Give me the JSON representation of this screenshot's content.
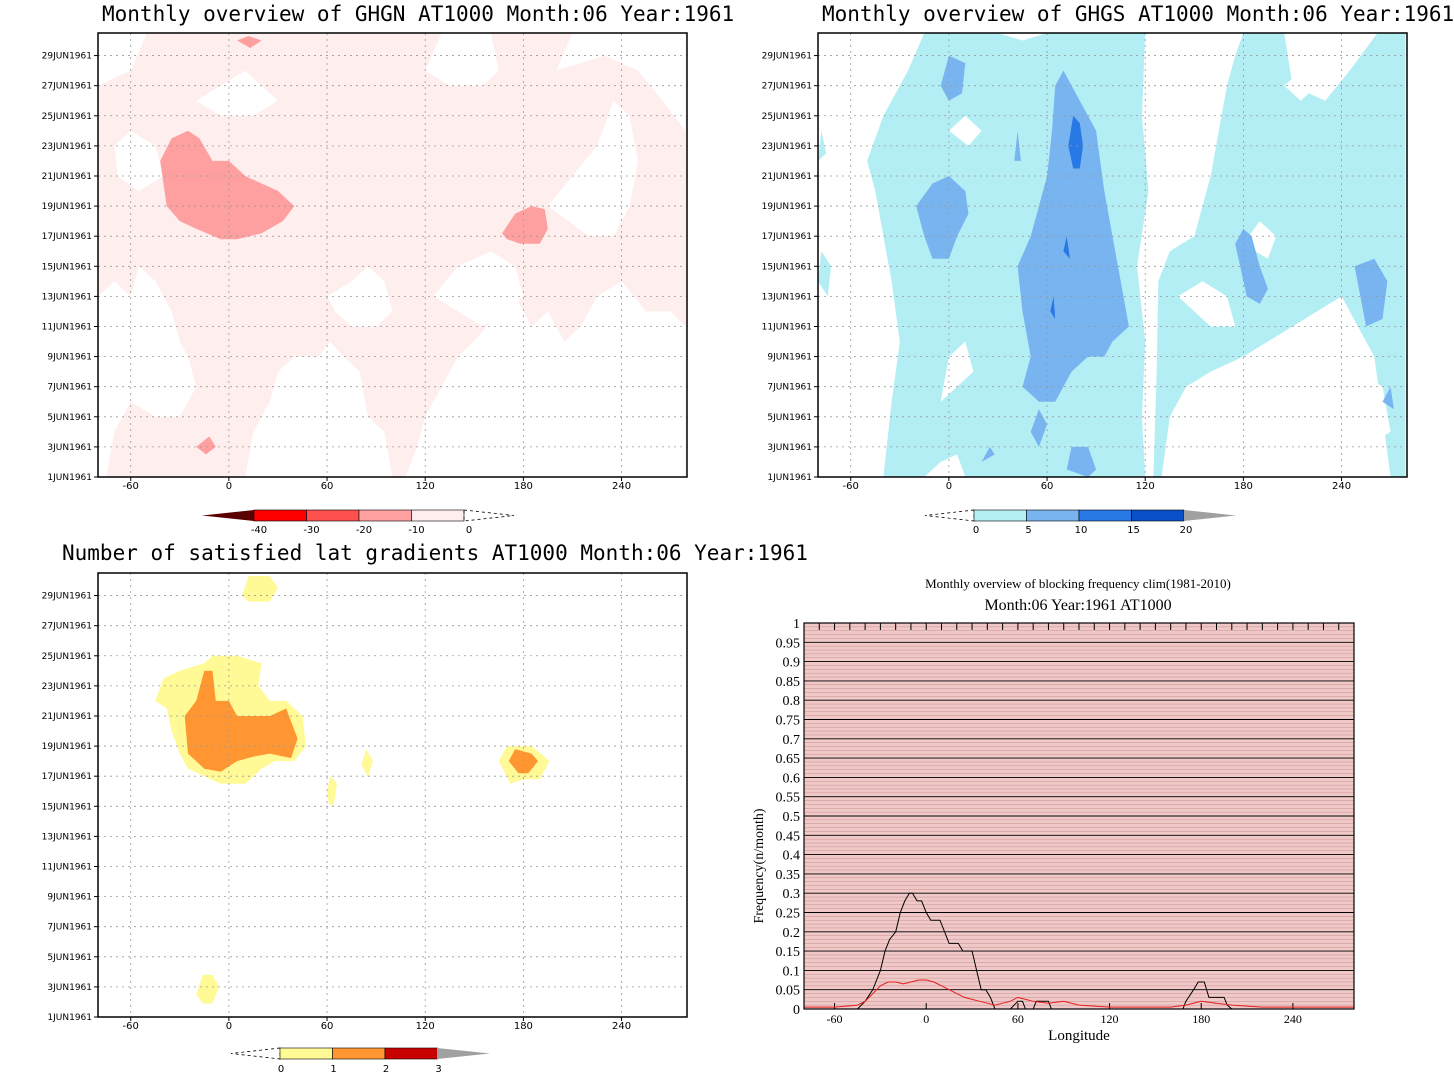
{
  "titles": {
    "ghgn": "Monthly overview of GHGN AT1000 Month:06 Year:1961",
    "ghgs": "Monthly overview of GHGS AT1000 Month:06 Year:1961",
    "grad": "Number of satisfied lat gradients AT1000 Month:06 Year:1961",
    "freq_top": "Monthly overview of blocking frequency clim(1981-2010)",
    "freq_sub": "Month:06 Year:1961  AT1000"
  },
  "colors": {
    "ghgn_fill": "#ffeeee",
    "ghgn_blob": "#ffa0a0",
    "ghgs_light": "#b4eef5",
    "ghgs_mid": "#78b4f0",
    "ghgs_dark": "#2878e6",
    "grad_yellow": "#fffa96",
    "grad_orange": "#ff9632",
    "freq_bg": "#f0c8c8",
    "freq_black": "#000000",
    "freq_red": "#e61e1e"
  },
  "chart_data": [
    {
      "type": "heatmap",
      "title": "Monthly overview of GHGN AT1000 Month:06 Year:1961",
      "x_ticks": [
        "-60",
        "0",
        "60",
        "120",
        "180",
        "240"
      ],
      "y_ticks": [
        "1JUN1961",
        "3JUN1961",
        "5JUN1961",
        "7JUN1961",
        "9JUN1961",
        "11JUN1961",
        "13JUN1961",
        "15JUN1961",
        "17JUN1961",
        "19JUN1961",
        "21JUN1961",
        "23JUN1961",
        "25JUN1961",
        "27JUN1961",
        "29JUN1961"
      ],
      "colorbar_labels": [
        "-40",
        "-30",
        "-20",
        "-10",
        "0"
      ],
      "colorbar_colors": [
        "#5a0000",
        "#ff0000",
        "#ff5050",
        "#ffa0a0",
        "#ffeeee"
      ],
      "regions": [
        {
          "level": "-20 to -10",
          "lon": [
            -45,
            45
          ],
          "date": [
            17,
            24
          ]
        },
        {
          "level": "-20 to -10",
          "lon": [
            167,
            195
          ],
          "date": [
            16.5,
            19
          ]
        }
      ]
    },
    {
      "type": "heatmap",
      "title": "Monthly overview of GHGS AT1000 Month:06 Year:1961",
      "x_ticks": [
        "-60",
        "0",
        "60",
        "120",
        "180",
        "240"
      ],
      "y_ticks": [
        "1JUN1961",
        "3JUN1961",
        "5JUN1961",
        "7JUN1961",
        "9JUN1961",
        "11JUN1961",
        "13JUN1961",
        "15JUN1961",
        "17JUN1961",
        "19JUN1961",
        "21JUN1961",
        "23JUN1961",
        "25JUN1961",
        "27JUN1961",
        "29JUN1961"
      ],
      "colorbar_labels": [
        "0",
        "5",
        "10",
        "15",
        "20"
      ],
      "colorbar_colors": [
        "#b4eef5",
        "#78b4f0",
        "#2878e6",
        "#0a50c8",
        "#a0a0a0"
      ]
    },
    {
      "type": "heatmap",
      "title": "Number of satisfied lat gradients AT1000 Month:06 Year:1961",
      "x_ticks": [
        "-60",
        "0",
        "60",
        "120",
        "180",
        "240"
      ],
      "y_ticks": [
        "1JUN1961",
        "3JUN1961",
        "5JUN1961",
        "7JUN1961",
        "9JUN1961",
        "11JUN1961",
        "13JUN1961",
        "15JUN1961",
        "17JUN1961",
        "19JUN1961",
        "21JUN1961",
        "23JUN1961",
        "25JUN1961",
        "27JUN1961",
        "29JUN1961"
      ],
      "colorbar_labels": [
        "0",
        "1",
        "2",
        "3"
      ],
      "colorbar_colors": [
        "#fffa96",
        "#ff9632",
        "#c80000",
        "#a0a0a0"
      ],
      "regions": [
        {
          "value": 1,
          "lon": [
            -45,
            47
          ],
          "date": [
            17,
            25
          ]
        },
        {
          "value": 2,
          "lon": [
            -27,
            42
          ],
          "date": [
            18,
            23
          ]
        },
        {
          "value": 1,
          "lon": [
            165,
            197
          ],
          "date": [
            17,
            19
          ]
        },
        {
          "value": 2,
          "lon": [
            171,
            189
          ],
          "date": [
            17.5,
            18.8
          ]
        },
        {
          "value": 1,
          "lon": [
            8,
            30
          ],
          "date": [
            28.9,
            30
          ]
        },
        {
          "value": 1,
          "lon": [
            -20,
            -5
          ],
          "date": [
            2,
            3.8
          ]
        }
      ]
    },
    {
      "type": "line",
      "title": "Monthly overview of blocking frequency clim(1981-2010)",
      "subtitle": "Month:06 Year:1961  AT1000",
      "xlabel": "Longitude",
      "ylabel": "Frequency(n/month)",
      "xlim": [
        -80,
        280
      ],
      "ylim": [
        0,
        1
      ],
      "x_ticks": [
        "-60",
        "0",
        "60",
        "120",
        "180",
        "240"
      ],
      "y_ticks": [
        "0",
        "0.05",
        "0.1",
        "0.15",
        "0.2",
        "0.25",
        "0.3",
        "0.35",
        "0.4",
        "0.45",
        "0.5",
        "0.55",
        "0.6",
        "0.65",
        "0.7",
        "0.75",
        "0.8",
        "0.85",
        "0.9",
        "0.95",
        "1"
      ],
      "series": [
        {
          "color": "#000000",
          "x": [
            -80,
            -65,
            -60,
            -55,
            -50,
            -45,
            -40,
            -35,
            -30,
            -27,
            -24,
            -20,
            -17,
            -14,
            -11,
            -9,
            -6,
            -3,
            0,
            3,
            6,
            9,
            12,
            15,
            18,
            21,
            24,
            27,
            30,
            33,
            36,
            39,
            42,
            45,
            50,
            55,
            60,
            63,
            65,
            70,
            72,
            80,
            82,
            85,
            88,
            90,
            95,
            100,
            110,
            120,
            130,
            140,
            150,
            160,
            165,
            168,
            170,
            175,
            178,
            182,
            185,
            190,
            195,
            197,
            200,
            210,
            220,
            230,
            240,
            250,
            260,
            270,
            280
          ],
          "y": [
            0,
            0,
            0,
            0,
            0,
            0,
            0.02,
            0.05,
            0.1,
            0.15,
            0.18,
            0.2,
            0.25,
            0.28,
            0.3,
            0.3,
            0.28,
            0.28,
            0.25,
            0.23,
            0.23,
            0.23,
            0.2,
            0.17,
            0.17,
            0.17,
            0.15,
            0.15,
            0.15,
            0.1,
            0.05,
            0.05,
            0.03,
            0,
            0,
            0,
            0.02,
            0.02,
            0,
            0,
            0.02,
            0.02,
            0,
            0,
            0,
            0,
            0,
            0,
            0,
            0,
            0,
            0,
            0,
            0,
            0,
            0,
            0.02,
            0.05,
            0.07,
            0.07,
            0.03,
            0.03,
            0.03,
            0.01,
            0,
            0,
            0,
            0,
            0,
            0,
            0,
            0,
            0
          ]
        },
        {
          "color": "#e61e1e",
          "x": [
            -80,
            -60,
            -45,
            -40,
            -35,
            -30,
            -25,
            -20,
            -15,
            -10,
            -5,
            0,
            5,
            10,
            15,
            20,
            25,
            30,
            35,
            40,
            45,
            50,
            55,
            60,
            65,
            70,
            80,
            90,
            100,
            120,
            140,
            160,
            170,
            180,
            190,
            200,
            220,
            240,
            260,
            280
          ],
          "y": [
            0.005,
            0.005,
            0.01,
            0.02,
            0.04,
            0.06,
            0.07,
            0.07,
            0.065,
            0.07,
            0.075,
            0.075,
            0.07,
            0.06,
            0.05,
            0.04,
            0.03,
            0.025,
            0.02,
            0.015,
            0.01,
            0.015,
            0.02,
            0.03,
            0.025,
            0.02,
            0.015,
            0.02,
            0.01,
            0.005,
            0.005,
            0.005,
            0.01,
            0.02,
            0.015,
            0.01,
            0.005,
            0.005,
            0.005,
            0.005
          ]
        }
      ]
    }
  ]
}
